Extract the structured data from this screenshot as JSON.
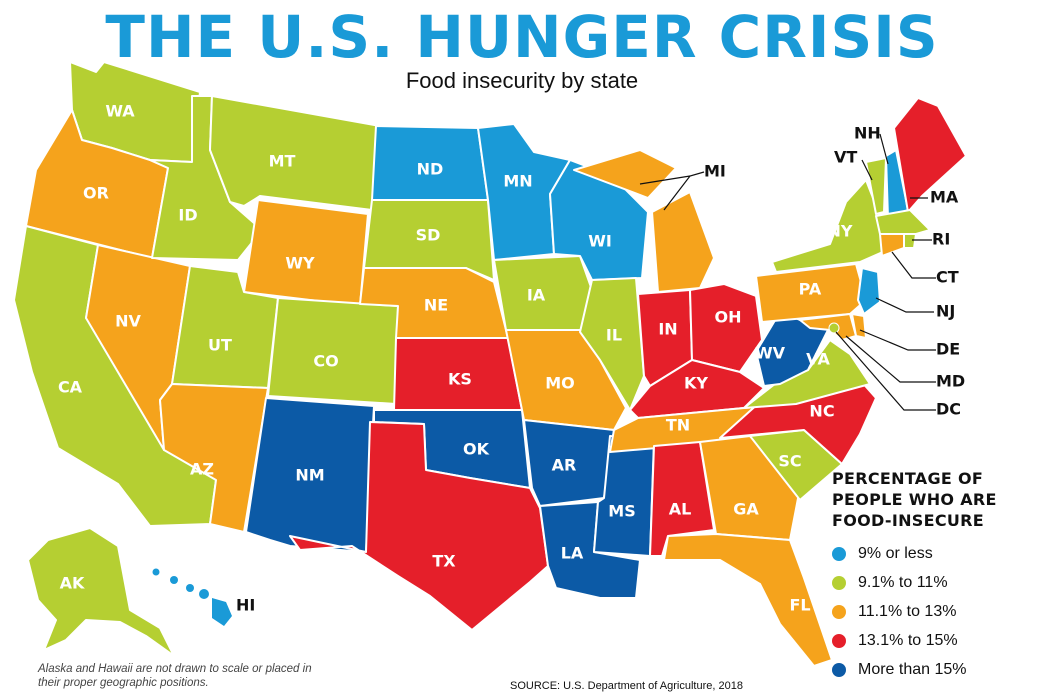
{
  "title": "THE U.S. HUNGER CRISIS",
  "subtitle": "Food insecurity by state",
  "colors": {
    "low": "#1a9ad7",
    "midlow": "#b5cf32",
    "mid": "#f5a31c",
    "midhigh": "#e51f2a",
    "high": "#0c5aa6"
  },
  "legend": {
    "title_lines": [
      "PERCENTAGE OF",
      "PEOPLE WHO ARE",
      "FOOD-INSECURE"
    ],
    "items": [
      {
        "label": "9% or less",
        "category": "low"
      },
      {
        "label": "9.1% to 11%",
        "category": "midlow"
      },
      {
        "label": "11.1% to 13%",
        "category": "mid"
      },
      {
        "label": "13.1% to 15%",
        "category": "midhigh"
      },
      {
        "label": "More than 15%",
        "category": "high"
      }
    ]
  },
  "states": {
    "WA": "midlow",
    "OR": "mid",
    "CA": "midlow",
    "NV": "mid",
    "ID": "midlow",
    "MT": "midlow",
    "WY": "mid",
    "UT": "midlow",
    "AZ": "mid",
    "CO": "midlow",
    "NM": "high",
    "ND": "low",
    "SD": "midlow",
    "NE": "mid",
    "KS": "midhigh",
    "OK": "high",
    "TX": "midhigh",
    "MN": "low",
    "IA": "midlow",
    "MO": "mid",
    "AR": "high",
    "LA": "high",
    "WI": "low",
    "IL": "midlow",
    "MS": "high",
    "MI": "mid",
    "IN": "midhigh",
    "OH": "midhigh",
    "KY": "midhigh",
    "TN": "mid",
    "AL": "midhigh",
    "GA": "mid",
    "FL": "mid",
    "SC": "midlow",
    "NC": "midhigh",
    "VA": "midlow",
    "WV": "high",
    "PA": "mid",
    "NY": "midlow",
    "VT": "midlow",
    "NH": "low",
    "ME": "midhigh",
    "MA": "midlow",
    "RI": "midlow",
    "CT": "mid",
    "NJ": "low",
    "DE": "mid",
    "MD": "mid",
    "DC": "midlow",
    "AK": "midlow",
    "HI": "low"
  },
  "footnote": "Alaska and Hawaii are not drawn to scale or placed in their proper geographic positions.",
  "source": "SOURCE: U.S. Department of Agriculture, 2018"
}
